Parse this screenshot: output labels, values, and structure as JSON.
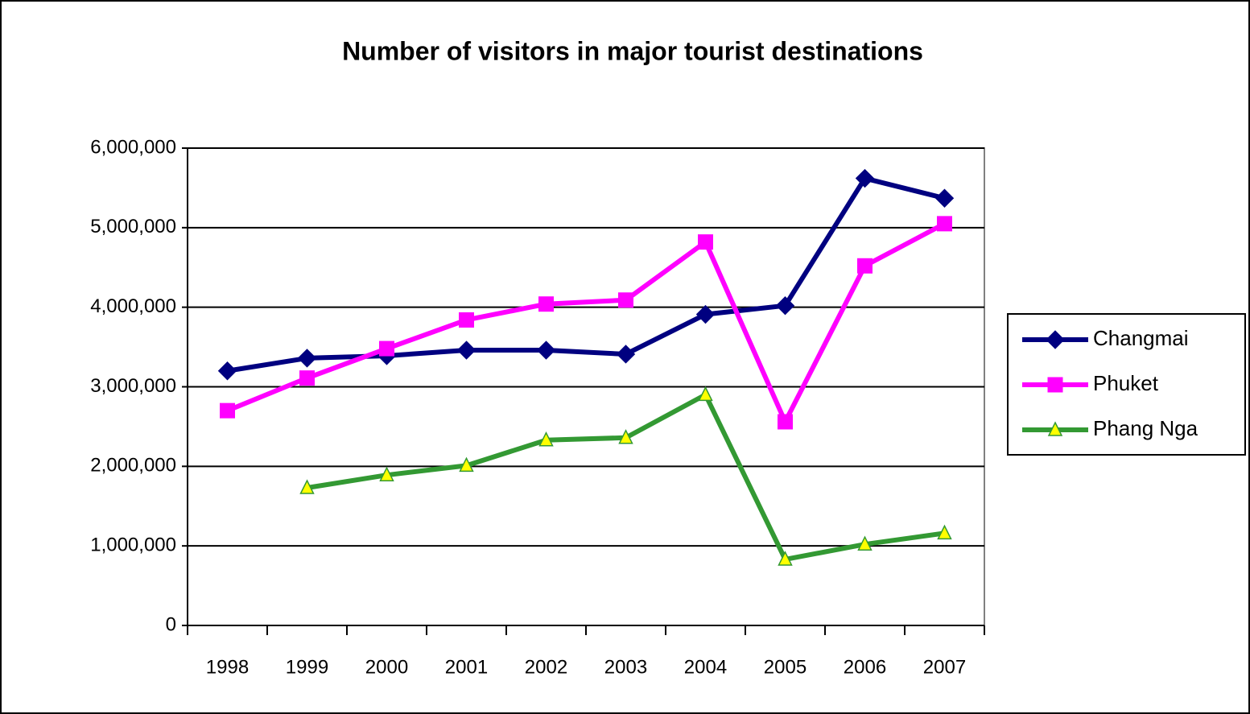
{
  "chart_data": {
    "type": "line",
    "title": "Number of visitors in major tourist destinations",
    "categories": [
      "1998",
      "1999",
      "2000",
      "2001",
      "2002",
      "2003",
      "2004",
      "2005",
      "2006",
      "2007"
    ],
    "series": [
      {
        "name": "Changmai",
        "color": "#000080",
        "marker": "diamond",
        "values": [
          3200000,
          3360000,
          3390000,
          3460000,
          3460000,
          3410000,
          3910000,
          4020000,
          5620000,
          5370000
        ]
      },
      {
        "name": "Phuket",
        "color": "#ff00ff",
        "marker": "square",
        "values": [
          2700000,
          3110000,
          3480000,
          3840000,
          4040000,
          4090000,
          4820000,
          2560000,
          4520000,
          5050000
        ]
      },
      {
        "name": "Phang Nga",
        "color": "#339933",
        "marker": "triangle",
        "marker_fill": "#ffff00",
        "values": [
          null,
          1730000,
          1890000,
          2010000,
          2330000,
          2360000,
          2900000,
          830000,
          1020000,
          1160000
        ]
      }
    ],
    "ylim": [
      0,
      6000000
    ],
    "yticks": [
      0,
      {
        "value": 1000000,
        "label": "1,000,000"
      },
      {
        "value": 2000000,
        "label": "2,000,000"
      },
      {
        "value": 3000000,
        "label": "3,000,000"
      },
      {
        "value": 4000000,
        "label": "4,000,000"
      },
      {
        "value": 5000000,
        "label": "5,000,000"
      },
      {
        "value": 6000000,
        "label": "6,000,000"
      }
    ],
    "grid": true,
    "legend": "right"
  }
}
